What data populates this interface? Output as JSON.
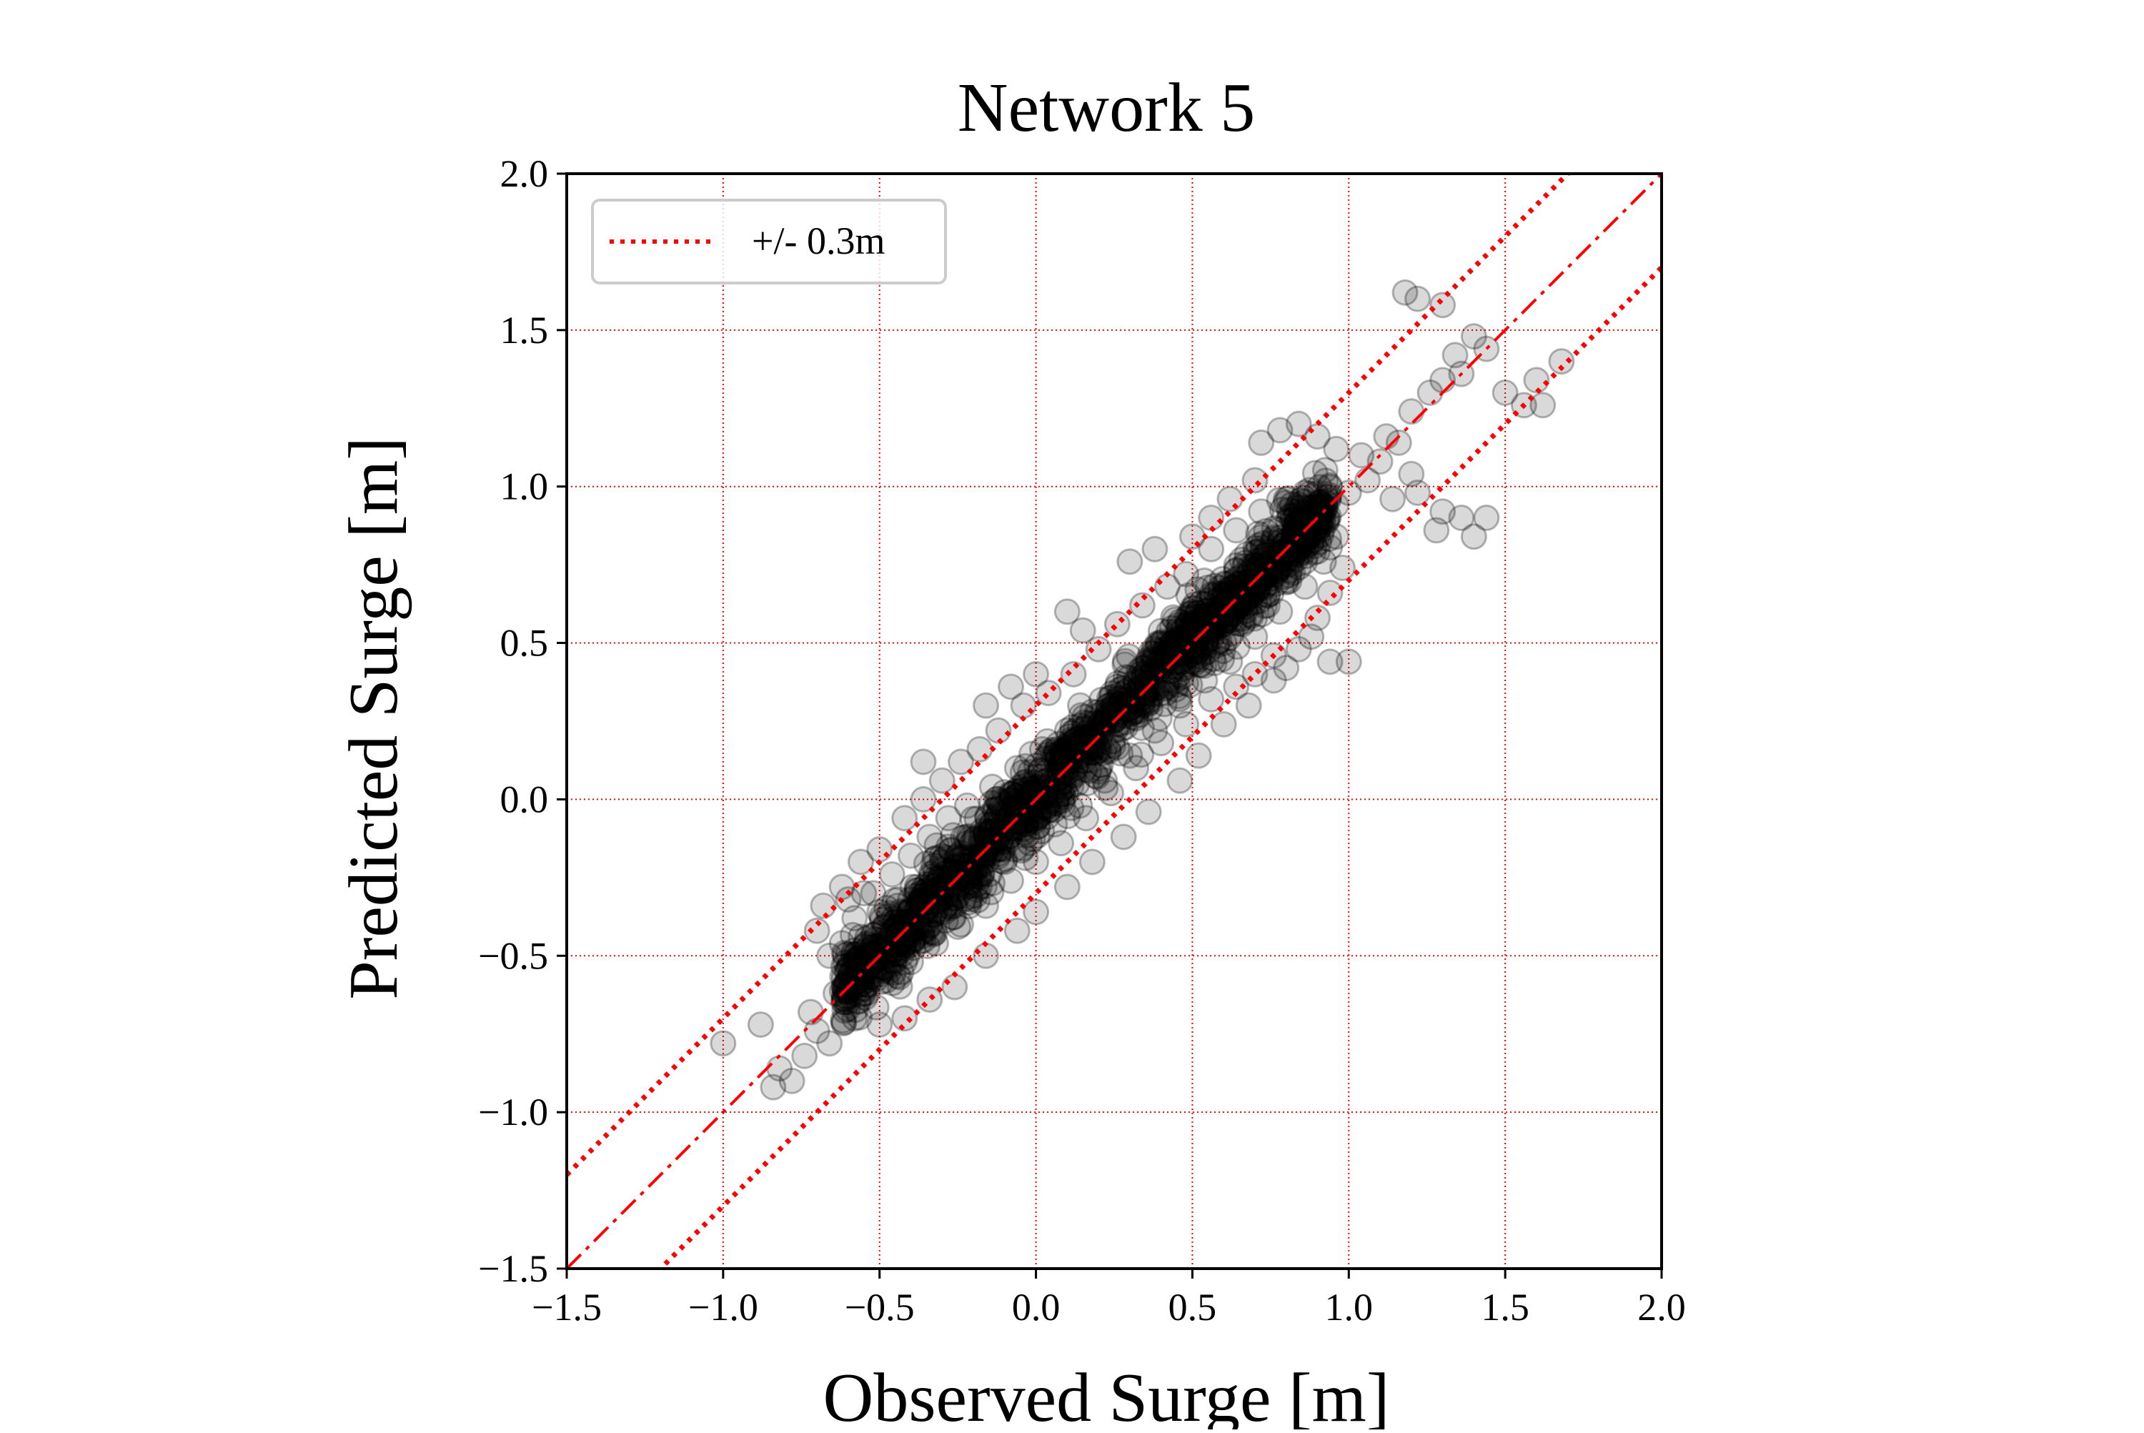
{
  "chart_data": {
    "type": "scatter",
    "title": "Network 5",
    "xlabel": "Observed Surge [m]",
    "ylabel": "Predicted Surge [m]",
    "xlim": [
      -1.5,
      2.0
    ],
    "ylim": [
      -1.5,
      2.0
    ],
    "xticks": [
      -1.5,
      -1.0,
      -0.5,
      0.0,
      0.5,
      1.0,
      1.5,
      2.0
    ],
    "yticks": [
      -1.5,
      -1.0,
      -0.5,
      0.0,
      0.5,
      1.0,
      1.5,
      2.0
    ],
    "xtick_labels": [
      "−1.5",
      "−1.0",
      "−0.5",
      "0.0",
      "0.5",
      "1.0",
      "1.5",
      "2.0"
    ],
    "ytick_labels": [
      "−1.5",
      "−1.0",
      "−0.5",
      "0.0",
      "0.5",
      "1.0",
      "1.5",
      "2.0"
    ],
    "grid": true,
    "grid_color": "#ff0000",
    "legend": {
      "position": "top-left",
      "entries": [
        {
          "label": "+/- 0.3m",
          "style": "dotted",
          "color": "#ff0000"
        }
      ]
    },
    "reference_lines": [
      {
        "slope": 1,
        "offset": 0.0,
        "style": "dashdot",
        "color": "#ff0000"
      },
      {
        "slope": 1,
        "offset": 0.3,
        "style": "dotted",
        "color": "#ff0000"
      },
      {
        "slope": 1,
        "offset": -0.3,
        "style": "dotted",
        "color": "#ff0000"
      }
    ],
    "marker_color": "#000000",
    "marker_alpha": 0.15,
    "series": [
      {
        "points": [
          [
            -1.0,
            -0.78
          ],
          [
            -0.88,
            -0.72
          ],
          [
            -0.82,
            -0.86
          ],
          [
            -0.78,
            -0.9
          ],
          [
            -0.74,
            -0.82
          ],
          [
            -0.7,
            -0.74
          ],
          [
            -0.84,
            -0.92
          ],
          [
            -0.72,
            -0.68
          ],
          [
            -0.66,
            -0.78
          ],
          [
            -0.68,
            -0.34
          ],
          [
            -0.6,
            -0.32
          ],
          [
            -0.55,
            -0.3
          ],
          [
            -0.36,
            0.12
          ],
          [
            -0.16,
            0.3
          ],
          [
            -0.08,
            0.36
          ],
          [
            0.0,
            0.4
          ],
          [
            0.1,
            0.6
          ],
          [
            0.15,
            0.54
          ],
          [
            0.3,
            0.76
          ],
          [
            0.38,
            0.8
          ],
          [
            0.5,
            0.84
          ],
          [
            0.56,
            0.9
          ],
          [
            0.62,
            0.96
          ],
          [
            0.7,
            1.02
          ],
          [
            0.72,
            1.14
          ],
          [
            0.78,
            1.18
          ],
          [
            0.84,
            1.2
          ],
          [
            0.9,
            1.16
          ],
          [
            0.96,
            1.12
          ],
          [
            1.04,
            1.1
          ],
          [
            1.12,
            1.16
          ],
          [
            1.2,
            1.24
          ],
          [
            1.26,
            1.3
          ],
          [
            1.34,
            1.42
          ],
          [
            1.4,
            1.48
          ],
          [
            1.44,
            1.44
          ],
          [
            1.3,
            1.34
          ],
          [
            1.36,
            1.36
          ],
          [
            1.18,
            1.62
          ],
          [
            1.22,
            1.6
          ],
          [
            1.3,
            1.58
          ],
          [
            1.5,
            1.3
          ],
          [
            1.56,
            1.26
          ],
          [
            1.62,
            1.26
          ],
          [
            1.6,
            1.34
          ],
          [
            1.68,
            1.4
          ],
          [
            1.2,
            1.04
          ],
          [
            1.14,
            0.96
          ],
          [
            1.22,
            0.98
          ],
          [
            1.3,
            0.92
          ],
          [
            1.36,
            0.9
          ],
          [
            1.4,
            0.84
          ],
          [
            1.44,
            0.9
          ],
          [
            1.28,
            0.86
          ],
          [
            0.94,
            0.44
          ],
          [
            1.0,
            0.44
          ],
          [
            0.88,
            0.52
          ],
          [
            0.8,
            0.42
          ],
          [
            0.76,
            0.38
          ],
          [
            0.68,
            0.3
          ],
          [
            0.6,
            0.24
          ],
          [
            0.52,
            0.14
          ],
          [
            0.46,
            0.06
          ],
          [
            0.36,
            -0.04
          ],
          [
            0.28,
            -0.12
          ],
          [
            0.18,
            -0.2
          ],
          [
            0.1,
            -0.28
          ],
          [
            0.0,
            -0.36
          ],
          [
            -0.06,
            -0.42
          ],
          [
            -0.16,
            -0.5
          ],
          [
            -0.26,
            -0.6
          ],
          [
            -0.34,
            -0.64
          ],
          [
            -0.42,
            -0.7
          ],
          [
            -0.5,
            -0.72
          ],
          [
            -0.58,
            -0.7
          ],
          [
            -0.64,
            -0.62
          ],
          [
            -0.66,
            -0.5
          ],
          [
            -0.7,
            -0.42
          ],
          [
            -0.62,
            -0.28
          ],
          [
            -0.56,
            -0.2
          ],
          [
            -0.5,
            -0.16
          ],
          [
            -0.42,
            -0.06
          ],
          [
            -0.36,
            0.0
          ],
          [
            -0.3,
            0.06
          ],
          [
            -0.24,
            0.12
          ],
          [
            -0.18,
            0.16
          ],
          [
            -0.12,
            0.22
          ],
          [
            -0.04,
            0.3
          ],
          [
            0.04,
            0.34
          ],
          [
            0.12,
            0.4
          ],
          [
            0.2,
            0.48
          ],
          [
            0.26,
            0.56
          ],
          [
            0.34,
            0.62
          ],
          [
            0.42,
            0.68
          ],
          [
            0.48,
            0.72
          ],
          [
            0.56,
            0.8
          ],
          [
            0.64,
            0.86
          ],
          [
            0.72,
            0.92
          ],
          [
            0.8,
            0.96
          ],
          [
            0.86,
            0.98
          ],
          [
            0.92,
            0.92
          ],
          [
            0.96,
            0.84
          ],
          [
            0.98,
            0.74
          ],
          [
            0.94,
            0.66
          ],
          [
            0.9,
            0.58
          ],
          [
            0.84,
            0.48
          ],
          [
            0.76,
            0.46
          ],
          [
            0.7,
            0.4
          ],
          [
            0.64,
            0.36
          ],
          [
            0.56,
            0.32
          ],
          [
            0.48,
            0.24
          ],
          [
            0.4,
            0.18
          ],
          [
            0.32,
            0.1
          ],
          [
            0.24,
            0.02
          ],
          [
            0.16,
            -0.06
          ],
          [
            0.08,
            -0.14
          ],
          [
            0.0,
            -0.2
          ],
          [
            -0.08,
            -0.26
          ],
          [
            -0.16,
            -0.34
          ],
          [
            -0.24,
            -0.4
          ],
          [
            -0.32,
            -0.46
          ],
          [
            -0.4,
            -0.52
          ],
          [
            -0.48,
            -0.58
          ],
          [
            -0.54,
            -0.62
          ],
          [
            -0.6,
            -0.58
          ],
          [
            -0.62,
            -0.46
          ],
          [
            -0.58,
            -0.38
          ],
          [
            -0.52,
            -0.3
          ],
          [
            -0.46,
            -0.24
          ],
          [
            -0.4,
            -0.18
          ],
          [
            -0.34,
            -0.12
          ],
          [
            -0.28,
            -0.06
          ],
          [
            -0.22,
            -0.02
          ],
          [
            -0.14,
            0.04
          ],
          [
            -0.06,
            0.1
          ],
          [
            0.02,
            0.16
          ],
          [
            0.1,
            0.22
          ],
          [
            0.18,
            0.28
          ],
          [
            0.26,
            0.36
          ],
          [
            0.34,
            0.42
          ],
          [
            0.42,
            0.48
          ],
          [
            0.5,
            0.54
          ],
          [
            0.58,
            0.6
          ],
          [
            0.66,
            0.66
          ],
          [
            0.74,
            0.72
          ],
          [
            0.82,
            0.78
          ],
          [
            0.88,
            0.82
          ],
          [
            0.92,
            0.76
          ],
          [
            0.86,
            0.68
          ],
          [
            0.78,
            0.6
          ],
          [
            0.7,
            0.52
          ],
          [
            0.62,
            0.44
          ],
          [
            0.54,
            0.38
          ],
          [
            0.46,
            0.3
          ],
          [
            0.38,
            0.22
          ],
          [
            0.3,
            0.14
          ],
          [
            0.22,
            0.06
          ],
          [
            0.14,
            -0.02
          ],
          [
            0.06,
            -0.08
          ],
          [
            -0.02,
            -0.14
          ],
          [
            -0.1,
            -0.2
          ],
          [
            -0.18,
            -0.28
          ],
          [
            -0.26,
            -0.34
          ],
          [
            -0.34,
            -0.4
          ],
          [
            -0.42,
            -0.46
          ],
          [
            -0.5,
            -0.5
          ],
          [
            -0.56,
            -0.44
          ],
          [
            -0.5,
            -0.36
          ],
          [
            -0.44,
            -0.32
          ],
          [
            -0.38,
            -0.28
          ],
          [
            -0.3,
            -0.2
          ],
          [
            -0.22,
            -0.14
          ],
          [
            -0.14,
            -0.08
          ],
          [
            -0.06,
            -0.02
          ],
          [
            0.02,
            0.04
          ],
          [
            0.1,
            0.1
          ],
          [
            0.18,
            0.18
          ],
          [
            0.26,
            0.24
          ],
          [
            0.34,
            0.3
          ],
          [
            0.42,
            0.36
          ],
          [
            0.5,
            0.44
          ],
          [
            0.58,
            0.5
          ],
          [
            0.66,
            0.56
          ],
          [
            0.74,
            0.62
          ],
          [
            0.8,
            0.7
          ],
          [
            0.86,
            0.76
          ],
          [
            0.9,
            0.86
          ],
          [
            0.96,
            0.94
          ],
          [
            1.0,
            0.98
          ],
          [
            1.06,
            1.02
          ],
          [
            1.1,
            1.08
          ],
          [
            1.16,
            1.14
          ]
        ]
      }
    ]
  }
}
